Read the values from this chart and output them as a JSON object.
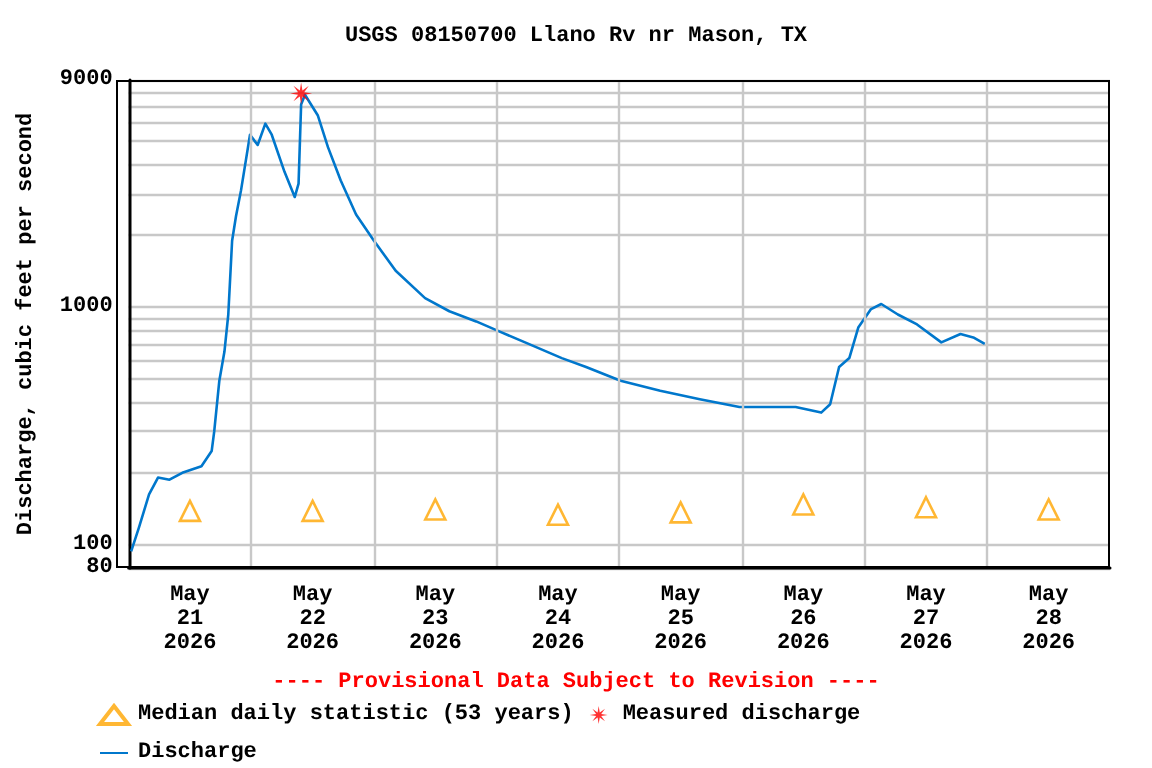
{
  "chart_data": {
    "type": "line",
    "title": "USGS 08150700 Llano Rv nr Mason, TX",
    "ylabel": "Discharge, cubic feet per second",
    "annotations": [
      "---- Provisional Data Subject to Revision ----"
    ],
    "log": "y",
    "grid": true,
    "legend": "bottom",
    "xlim": [
      "2026-05-21T00:00",
      "2026-05-29T00:00"
    ],
    "xticks": [
      {
        "value": "2026-05-21T12:00",
        "label": "May\n21\n2026"
      },
      {
        "value": "2026-05-22T00:00",
        "label": null
      },
      {
        "value": "2026-05-22T12:00",
        "label": "May\n22\n2026"
      },
      {
        "value": "2026-05-23T00:00",
        "label": null
      },
      {
        "value": "2026-05-23T12:00",
        "label": "May\n23\n2026"
      },
      {
        "value": "2026-05-24T00:00",
        "label": null
      },
      {
        "value": "2026-05-24T12:00",
        "label": "May\n24\n2026"
      },
      {
        "value": "2026-05-25T00:00",
        "label": null
      },
      {
        "value": "2026-05-25T12:00",
        "label": "May\n25\n2026"
      },
      {
        "value": "2026-05-26T00:00",
        "label": null
      },
      {
        "value": "2026-05-26T12:00",
        "label": "May\n26\n2026"
      },
      {
        "value": "2026-05-27T00:00",
        "label": null
      },
      {
        "value": "2026-05-27T12:00",
        "label": "May\n27\n2026"
      },
      {
        "value": "2026-05-28T00:00",
        "label": null
      },
      {
        "value": "2026-05-28T12:00",
        "label": "May\n28\n2026"
      }
    ],
    "ylim": [
      80,
      9000
    ],
    "yticks": [
      80,
      100,
      {
        "value": 200,
        "label": null
      },
      {
        "value": 300,
        "label": null
      },
      {
        "value": 400,
        "label": null
      },
      {
        "value": 500,
        "label": null
      },
      {
        "value": 600,
        "label": null
      },
      {
        "value": 700,
        "label": null
      },
      {
        "value": 800,
        "label": null
      },
      {
        "value": 900,
        "label": null
      },
      1000,
      {
        "value": 2000,
        "label": null
      },
      {
        "value": 3000,
        "label": null
      },
      {
        "value": 4000,
        "label": null
      },
      {
        "value": 5000,
        "label": null
      },
      {
        "value": 6000,
        "label": null
      },
      {
        "value": 7000,
        "label": null
      },
      {
        "value": 8000,
        "label": null
      },
      9000
    ],
    "series": [
      {
        "name": "Median daily statistic (53 years)",
        "type": "scatter",
        "marker": "triangle",
        "color": "#ffa500",
        "x": [
          "2026-05-21T12:00",
          "2026-05-22T12:00",
          "2026-05-23T12:00",
          "2026-05-24T12:00",
          "2026-05-25T12:00",
          "2026-05-26T12:00",
          "2026-05-27T12:00",
          "2026-05-28T12:00"
        ],
        "values": [
          139,
          139,
          141,
          134,
          137,
          148,
          144,
          141
        ]
      },
      {
        "name": "Measured discharge",
        "type": "scatter",
        "marker": "star",
        "color": "#ff0000",
        "x": [
          "2026-05-22T09:45"
        ],
        "values": [
          7900
        ]
      },
      {
        "name": "Discharge",
        "marker": "none",
        "color": "#0077cc",
        "x": [
          "2026-05-21T00:30",
          "2026-05-21T02:00",
          "2026-05-21T04:00",
          "2026-05-21T05:45",
          "2026-05-21T08:00",
          "2026-05-21T10:30",
          "2026-05-21T14:15",
          "2026-05-21T16:15",
          "2026-05-21T16:45",
          "2026-05-21T17:45",
          "2026-05-21T18:45",
          "2026-05-21T19:30",
          "2026-05-21T20:15",
          "2026-05-21T21:00",
          "2026-05-21T22:00",
          "2026-05-21T23:45",
          "2026-05-22T01:15",
          "2026-05-22T02:45",
          "2026-05-22T04:00",
          "2026-05-22T06:30",
          "2026-05-22T08:30",
          "2026-05-22T09:15",
          "2026-05-22T09:45",
          "2026-05-22T10:30",
          "2026-05-22T13:00",
          "2026-05-22T15:00",
          "2026-05-22T17:30",
          "2026-05-22T20:30",
          "2026-05-23T00:00",
          "2026-05-23T04:15",
          "2026-05-23T10:00",
          "2026-05-23T14:45",
          "2026-05-23T20:00",
          "2026-05-24T00:30",
          "2026-05-24T06:15",
          "2026-05-24T12:45",
          "2026-05-24T17:30",
          "2026-05-25T00:15",
          "2026-05-25T08:00",
          "2026-05-25T15:45",
          "2026-05-25T23:30",
          "2026-05-26T10:30",
          "2026-05-26T15:30",
          "2026-05-26T17:15",
          "2026-05-26T19:00",
          "2026-05-26T21:00",
          "2026-05-26T22:45",
          "2026-05-27T01:15",
          "2026-05-27T03:15",
          "2026-05-27T06:30",
          "2026-05-27T10:15",
          "2026-05-27T15:00",
          "2026-05-27T18:45",
          "2026-05-27T21:15",
          "2026-05-27T23:30"
        ],
        "values": [
          94,
          118,
          163,
          192,
          188,
          201,
          214,
          248,
          300,
          490,
          650,
          930,
          1900,
          2400,
          3100,
          5300,
          4800,
          5900,
          5300,
          3700,
          2900,
          3300,
          7100,
          7800,
          6400,
          4700,
          3400,
          2450,
          1900,
          1420,
          1090,
          960,
          870,
          790,
          700,
          610,
          560,
          490,
          445,
          410,
          380,
          380,
          360,
          390,
          560,
          610,
          820,
          980,
          1030,
          930,
          845,
          710,
          770,
          745,
          700
        ]
      }
    ]
  }
}
